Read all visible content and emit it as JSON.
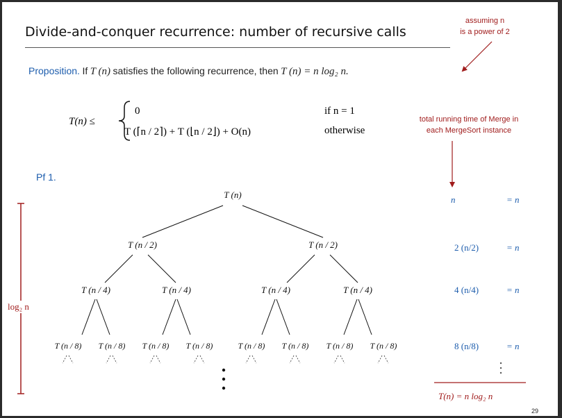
{
  "title": "Divide-and-conquer recurrence:  number of recursive calls",
  "note_power": [
    "assuming n",
    "is a power of 2"
  ],
  "proposition": {
    "label": "Proposition.",
    "text_a": "If",
    "text_b": "satisfies the following recurrence, then",
    "tn": "T (n)",
    "result": "T (n) = n log₂ n."
  },
  "recurrence": {
    "lhs": "T(n)  ≤",
    "case1_value": "0",
    "case1_cond": "if n = 1",
    "case2_value": "T (⌈n / 2⌉)  +  T (⌊n / 2⌋)  +  O(n)",
    "case2_cond": "otherwise"
  },
  "note_merge": [
    "total running time of Merge in",
    "each MergeSort instance"
  ],
  "proof_label": "Pf 1.",
  "tree": {
    "root": "T (n)",
    "level1": [
      "T (n / 2)",
      "T (n / 2)"
    ],
    "level2": [
      "T (n / 4)",
      "T (n / 4)",
      "T (n / 4)",
      "T (n / 4)"
    ],
    "level3": [
      "T (n / 8)",
      "T (n / 8)",
      "T (n / 8)",
      "T (n / 8)",
      "T (n / 8)",
      "T (n / 8)",
      "T (n / 8)",
      "T (n / 8)"
    ]
  },
  "depth_label": "log₂ n",
  "levels": [
    {
      "term": "n",
      "eq": "= n"
    },
    {
      "term": "2 (n/2)",
      "eq": "= n"
    },
    {
      "term": "4 (n/4)",
      "eq": "= n"
    },
    {
      "term": "8 (n/8)",
      "eq": "= n"
    }
  ],
  "total": "T(n) = n log₂ n",
  "page_number": "29",
  "colors": {
    "accent_blue": "#1d5dad",
    "accent_red": "#a01c1c"
  }
}
